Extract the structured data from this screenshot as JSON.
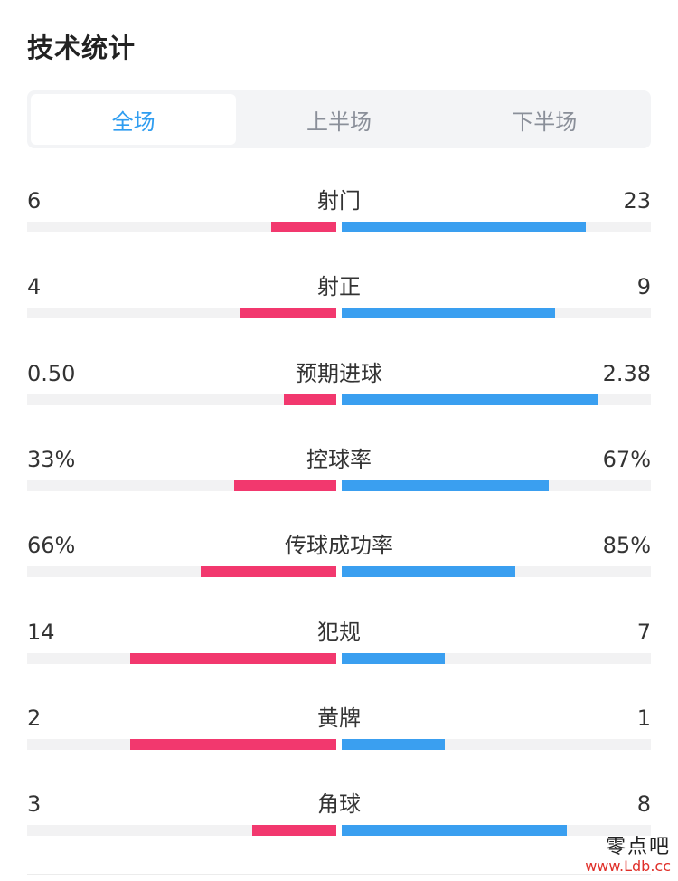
{
  "title": "技术统计",
  "tabs": [
    {
      "label": "全场",
      "active": true
    },
    {
      "label": "上半场",
      "active": false
    },
    {
      "label": "下半场",
      "active": false
    }
  ],
  "colors": {
    "home": "#f2386e",
    "away": "#3a9ff0",
    "active_tab": "#2f9df0"
  },
  "stats": [
    {
      "name": "射门",
      "left": "6",
      "right": "23",
      "left_frac": 0.21,
      "right_frac": 0.79
    },
    {
      "name": "射正",
      "left": "4",
      "right": "9",
      "left_frac": 0.31,
      "right_frac": 0.69
    },
    {
      "name": "预期进球",
      "left": "0.50",
      "right": "2.38",
      "left_frac": 0.17,
      "right_frac": 0.83
    },
    {
      "name": "控球率",
      "left": "33%",
      "right": "67%",
      "left_frac": 0.33,
      "right_frac": 0.67
    },
    {
      "name": "传球成功率",
      "left": "66%",
      "right": "85%",
      "left_frac": 0.44,
      "right_frac": 0.56
    },
    {
      "name": "犯规",
      "left": "14",
      "right": "7",
      "left_frac": 0.667,
      "right_frac": 0.333
    },
    {
      "name": "黄牌",
      "left": "2",
      "right": "1",
      "left_frac": 0.667,
      "right_frac": 0.333
    },
    {
      "name": "角球",
      "left": "3",
      "right": "8",
      "left_frac": 0.273,
      "right_frac": 0.727
    }
  ],
  "watermark": {
    "text": "零点吧",
    "url": "www.Ldb.cc"
  }
}
